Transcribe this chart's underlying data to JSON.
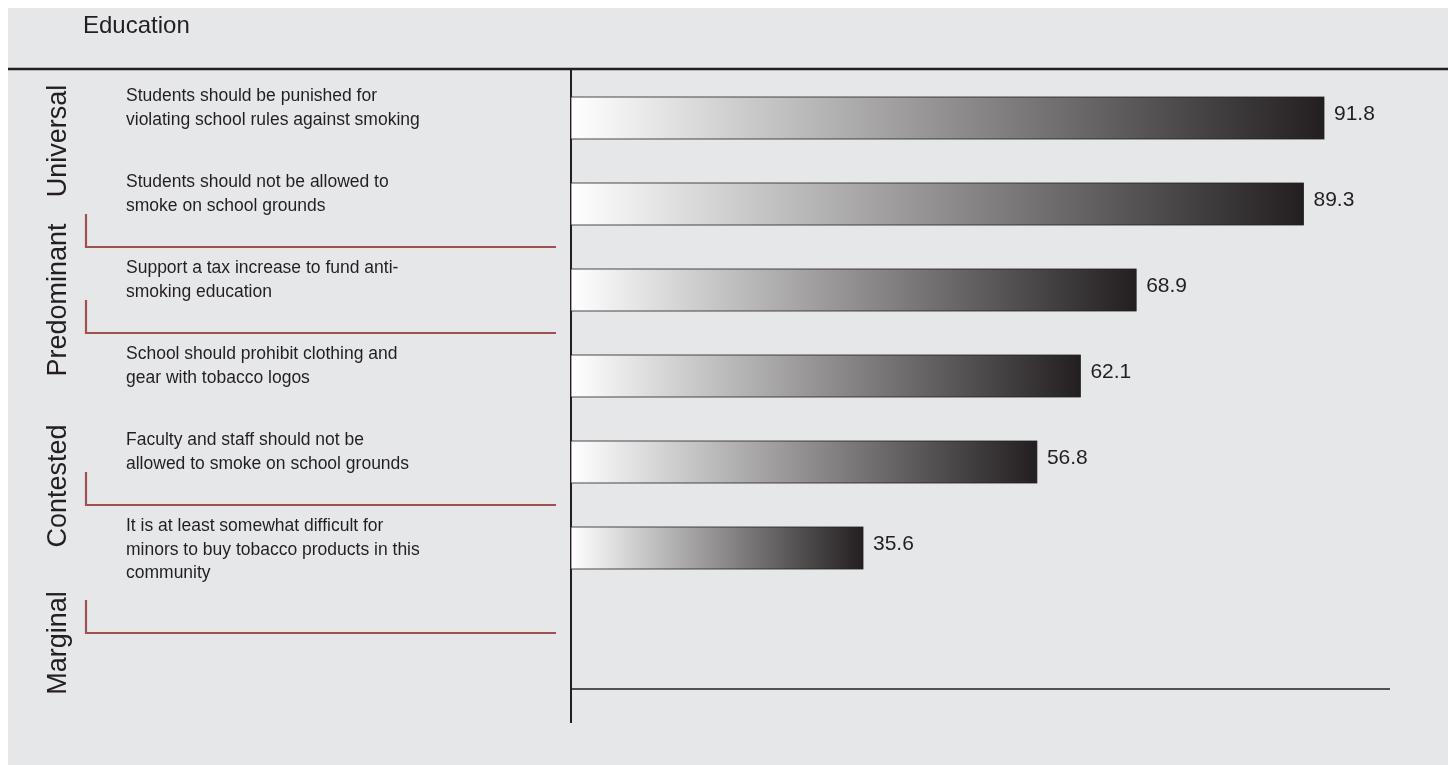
{
  "chart_data": {
    "type": "bar",
    "orientation": "horizontal",
    "title": "Education",
    "categories": [
      "Students should be punished for violating school rules against smoking",
      "Students should not be allowed to smoke on school grounds",
      "Support a tax increase to fund anti-smoking education",
      "School should prohibit clothing and gear with tobacco logos",
      "Faculty and staff should not be allowed to smoke on school grounds",
      "It is at least somewhat difficult for minors to buy tobacco products in this community"
    ],
    "values": [
      91.8,
      89.3,
      68.9,
      62.1,
      56.8,
      35.6
    ],
    "color": "#231f20",
    "data_labels": true,
    "annotations": [
      "Universal",
      "Predominant",
      "Contested",
      "Marginal"
    ]
  }
}
